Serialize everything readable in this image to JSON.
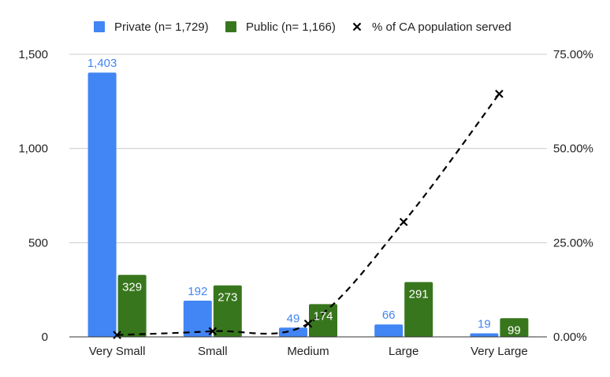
{
  "chart_data": {
    "type": "bar",
    "categories": [
      "Very Small",
      "Small",
      "Medium",
      "Large",
      "Very Large"
    ],
    "series": [
      {
        "name": "Private (n= 1,729)",
        "type": "bar",
        "axis": "left",
        "values": [
          1403,
          192,
          49,
          66,
          19
        ],
        "labels": [
          "1,403",
          "192",
          "49",
          "66",
          "19"
        ],
        "color": "#4285f4",
        "label_color": "#4285f4"
      },
      {
        "name": "Public (n= 1,166)",
        "type": "bar",
        "axis": "left",
        "values": [
          329,
          273,
          174,
          291,
          99
        ],
        "labels": [
          "329",
          "273",
          "174",
          "291",
          "99"
        ],
        "color": "#38761d",
        "label_color": "#ffffff"
      },
      {
        "name": "% of CA population served",
        "type": "line",
        "axis": "right",
        "line_style": "dashed",
        "marker": "x",
        "values": [
          0.5,
          1.5,
          3.5,
          30.5,
          64.5
        ],
        "color": "#000000"
      }
    ],
    "y_left": {
      "ylim": [
        0,
        1500
      ],
      "ticks": [
        0,
        500,
        1000,
        1500
      ],
      "tick_labels": [
        "0",
        "500",
        "1,000",
        "1,500"
      ]
    },
    "y_right": {
      "ylim": [
        0,
        75
      ],
      "ticks": [
        0,
        25,
        50,
        75
      ],
      "tick_labels": [
        "0.00%",
        "25.00%",
        "50.00%",
        "75.00%"
      ]
    },
    "gridlines": true,
    "legend_position": "top",
    "title": "",
    "xlabel": "",
    "ylabel": ""
  }
}
